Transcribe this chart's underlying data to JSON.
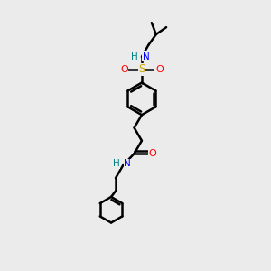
{
  "bg_color": "#ebebeb",
  "bond_color": "#000000",
  "N_color": "#0000ff",
  "O_color": "#ff0000",
  "S_color": "#ccaa00",
  "H_color": "#008080",
  "line_width": 1.8,
  "fig_size": [
    3.0,
    3.0
  ],
  "dpi": 100,
  "xlim": [
    0.0,
    10.0
  ],
  "ylim": [
    0.0,
    15.0
  ]
}
